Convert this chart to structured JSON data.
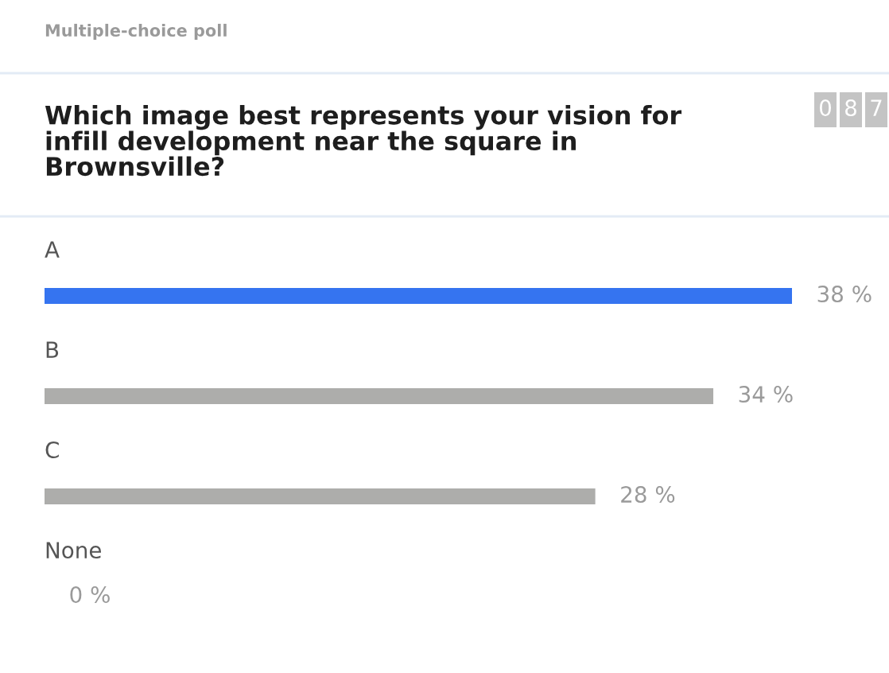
{
  "chart_data": {
    "type": "bar",
    "orientation": "horizontal",
    "subtitle": "Multiple-choice poll",
    "title": "Which image best represents your vision for\ninfill development near the square in\nBrownsville?",
    "annotations": [
      "087"
    ],
    "categories": [
      "A",
      "B",
      "C",
      "None"
    ],
    "values": [
      38,
      34,
      28,
      0
    ],
    "colors": [
      "#3574f0",
      "#adadab",
      "#adadab",
      "#adadab"
    ],
    "value_labels": [
      "38 %",
      "34 %",
      "28 %",
      "0 %"
    ]
  }
}
